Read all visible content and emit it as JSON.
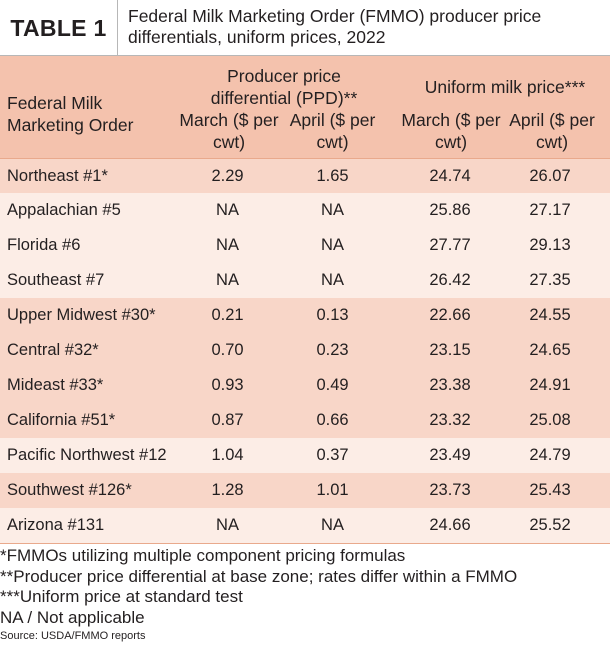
{
  "table": {
    "tag": "TABLE 1",
    "title": "Federal Milk Marketing Order (FMMO) producer price differentials, uniform prices, 2022"
  },
  "header": {
    "first_col": "Federal Milk Marketing Order",
    "group1": "Producer price differential (PPD)**",
    "group2": "Uniform milk price***",
    "sub": [
      "March ($ per cwt)",
      "April ($ per cwt)",
      "March ($ per cwt)",
      "April ($ per cwt)"
    ]
  },
  "rows": [
    {
      "order": "Northeast #1*",
      "ppd_march": "2.29",
      "ppd_april": "1.65",
      "uniform_march": "24.74",
      "uniform_april": "26.07"
    },
    {
      "order": "Appalachian #5",
      "ppd_march": "NA",
      "ppd_april": "NA",
      "uniform_march": "25.86",
      "uniform_april": "27.17"
    },
    {
      "order": "Florida #6",
      "ppd_march": "NA",
      "ppd_april": "NA",
      "uniform_march": "27.77",
      "uniform_april": "29.13"
    },
    {
      "order": "Southeast #7",
      "ppd_march": "NA",
      "ppd_april": "NA",
      "uniform_march": "26.42",
      "uniform_april": "27.35"
    },
    {
      "order": "Upper Midwest #30*",
      "ppd_march": "0.21",
      "ppd_april": "0.13",
      "uniform_march": "22.66",
      "uniform_april": "24.55"
    },
    {
      "order": "Central #32*",
      "ppd_march": "0.70",
      "ppd_april": "0.23",
      "uniform_march": "23.15",
      "uniform_april": "24.65"
    },
    {
      "order": "Mideast #33*",
      "ppd_march": "0.93",
      "ppd_april": "0.49",
      "uniform_march": "23.38",
      "uniform_april": "24.91"
    },
    {
      "order": "California #51*",
      "ppd_march": "0.87",
      "ppd_april": "0.66",
      "uniform_march": "23.32",
      "uniform_april": "25.08"
    },
    {
      "order": "Pacific Northwest #12",
      "ppd_march": "1.04",
      "ppd_april": "0.37",
      "uniform_march": "23.49",
      "uniform_april": "24.79"
    },
    {
      "order": "Southwest #126*",
      "ppd_march": "1.28",
      "ppd_april": "1.01",
      "uniform_march": "23.73",
      "uniform_april": "25.43"
    },
    {
      "order": "Arizona #131",
      "ppd_march": "NA",
      "ppd_april": "NA",
      "uniform_march": "24.66",
      "uniform_april": "25.52"
    }
  ],
  "notes": [
    "*FMMOs utilizing multiple component pricing formulas",
    "**Producer price differential at base zone; rates differ within a FMMO",
    "***Uniform price at standard test",
    "NA / Not applicable"
  ],
  "source": "Source: USDA/FMMO reports",
  "colors": {
    "header_bg": "#f4c2ad",
    "row_dark": "#f8d6c8",
    "row_light": "#fcede6"
  }
}
